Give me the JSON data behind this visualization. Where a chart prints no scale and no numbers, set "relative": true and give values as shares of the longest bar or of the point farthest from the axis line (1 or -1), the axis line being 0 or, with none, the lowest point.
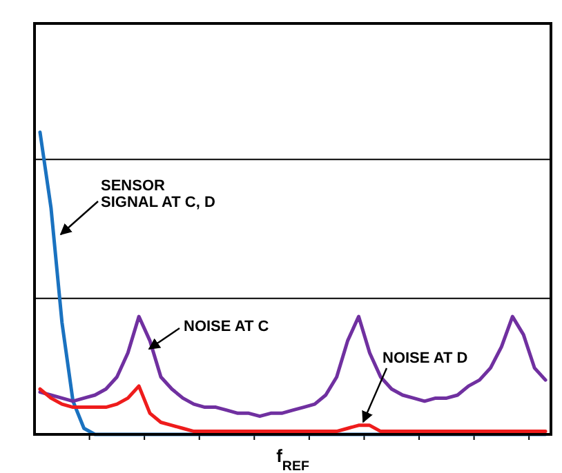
{
  "chart_data": {
    "type": "line",
    "relative": true,
    "xlabel": "f$_{REF}$",
    "ref_lines": [
      {
        "axis": "y",
        "value": 0.45,
        "color": "#000000"
      },
      {
        "axis": "y",
        "value": 0.91,
        "color": "#000000"
      }
    ],
    "line_style": "solid",
    "categories": [
      null,
      null,
      null,
      null,
      null,
      null,
      null,
      null,
      null,
      null,
      null,
      null,
      null,
      null,
      null,
      null,
      null,
      null,
      null,
      null,
      null,
      null,
      null,
      null,
      null,
      null,
      null,
      null,
      null,
      null,
      null,
      null,
      null,
      null,
      null,
      null,
      null,
      null,
      null,
      null,
      null,
      null,
      null,
      null,
      null,
      null,
      null
    ],
    "series": [
      {
        "color": "#1a72c0",
        "values": [
          1,
          0.75,
          0.37,
          0.11,
          0.02,
          0,
          0,
          0,
          0,
          0,
          0,
          0,
          0,
          0,
          0,
          0,
          0,
          0,
          0,
          0,
          0,
          0,
          0,
          0,
          0,
          0,
          0,
          0,
          0,
          0,
          0,
          0,
          0,
          0,
          0,
          0,
          0,
          0,
          0,
          0,
          0,
          0,
          0,
          0,
          0,
          0,
          0
        ]
      },
      {
        "color": "#7030a0",
        "values": [
          0.14,
          0.13,
          0.12,
          0.11,
          0.12,
          0.13,
          0.15,
          0.19,
          0.27,
          0.39,
          0.31,
          0.19,
          0.15,
          0.12,
          0.1,
          0.09,
          0.09,
          0.08,
          0.07,
          0.07,
          0.06,
          0.07,
          0.07,
          0.08,
          0.09,
          0.1,
          0.13,
          0.19,
          0.31,
          0.39,
          0.27,
          0.19,
          0.15,
          0.13,
          0.12,
          0.11,
          0.12,
          0.12,
          0.13,
          0.16,
          0.18,
          0.22,
          0.29,
          0.39,
          0.33,
          0.22,
          0.18
        ]
      },
      {
        "color": "#ee1c1c",
        "values": [
          0.15,
          0.12,
          0.1,
          0.09,
          0.09,
          0.09,
          0.09,
          0.1,
          0.12,
          0.16,
          0.07,
          0.04,
          0.03,
          0.02,
          0.01,
          0.01,
          0.01,
          0.01,
          0.01,
          0.01,
          0.01,
          0.01,
          0.01,
          0.01,
          0.01,
          0.01,
          0.01,
          0.01,
          0.02,
          0.03,
          0.03,
          0.01,
          0.01,
          0.01,
          0.01,
          0.01,
          0.01,
          0.01,
          0.01,
          0.01,
          0.01,
          0.01,
          0.01,
          0.01,
          0.01,
          0.01,
          0.01
        ]
      }
    ],
    "annotations": [
      "SENSOR\nSIGNAL AT C, D",
      "NOISE AT C",
      "NOISE AT D"
    ]
  }
}
